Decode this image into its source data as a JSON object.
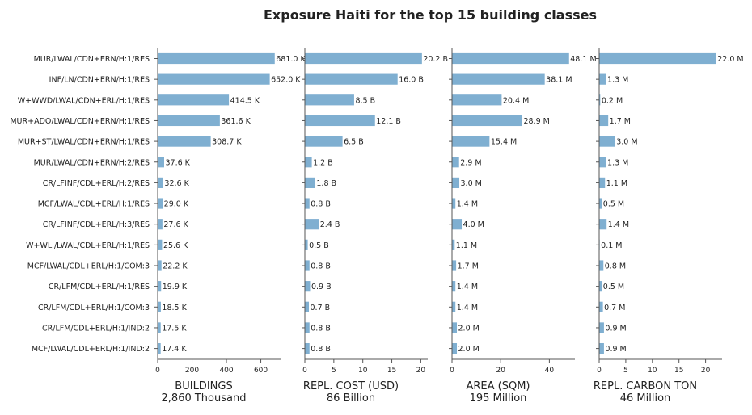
{
  "chart_data": {
    "type": "bar",
    "orientation": "horizontal",
    "title": "Exposure Haiti for the top 15 building classes",
    "categories": [
      "MUR/LWAL/CDN+ERN/H:1/RES",
      "INF/LN/CDN+ERN/H:1/RES",
      "W+WWD/LWAL/CDN+ERL/H:1/RES",
      "MUR+ADO/LWAL/CDN+ERN/H:1/RES",
      "MUR+ST/LWAL/CDN+ERN/H:1/RES",
      "MUR/LWAL/CDN+ERN/H:2/RES",
      "CR/LFINF/CDL+ERL/H:2/RES",
      "MCF/LWAL/CDL+ERL/H:1/RES",
      "CR/LFINF/CDL+ERL/H:3/RES",
      "W+WLI/LWAL/CDL+ERL/H:1/RES",
      "MCF/LWAL/CDL+ERL/H:1/COM:3",
      "CR/LFM/CDL+ERL/H:1/RES",
      "CR/LFM/CDL+ERL/H:1/COM:3",
      "CR/LFM/CDL+ERL/H:1/IND:2",
      "MCF/LWAL/CDL+ERL/H:1/IND:2"
    ],
    "bar_color": "#7fafd1",
    "panels": [
      {
        "xlabel": "BUILDINGS",
        "total": "2,860 Thousand",
        "values": [
          681.0,
          652.0,
          414.5,
          361.6,
          308.7,
          37.6,
          32.6,
          29.0,
          27.6,
          25.6,
          22.2,
          19.9,
          18.5,
          17.5,
          17.4
        ],
        "labels": [
          "681.0 K",
          "652.0 K",
          "414.5 K",
          "361.6 K",
          "308.7 K",
          "37.6 K",
          "32.6 K",
          "29.0 K",
          "27.6 K",
          "25.6 K",
          "22.2 K",
          "19.9 K",
          "18.5 K",
          "17.5 K",
          "17.4 K"
        ],
        "xlim": [
          0,
          715
        ],
        "ticks": [
          0,
          200,
          400,
          600
        ],
        "tick_labels": [
          "0",
          "200",
          "400",
          "600"
        ]
      },
      {
        "xlabel": "REPL. COST (USD)",
        "total": "86 Billion",
        "values": [
          20.2,
          16.0,
          8.5,
          12.1,
          6.5,
          1.2,
          1.8,
          0.8,
          2.4,
          0.5,
          0.8,
          0.9,
          0.7,
          0.8,
          0.8
        ],
        "labels": [
          "20.2 B",
          "16.0 B",
          "8.5 B",
          "12.1 B",
          "6.5 B",
          "1.2 B",
          "1.8 B",
          "0.8 B",
          "2.4 B",
          "0.5 B",
          "0.8 B",
          "0.9 B",
          "0.7 B",
          "0.8 B",
          "0.8 B"
        ],
        "xlim": [
          0,
          21.2
        ],
        "ticks": [
          0,
          5,
          10,
          15,
          20
        ],
        "tick_labels": [
          "0",
          "5",
          "10",
          "15",
          "20"
        ]
      },
      {
        "xlabel": "AREA (SQM)",
        "total": "195 Million",
        "values": [
          48.1,
          38.1,
          20.4,
          28.9,
          15.4,
          2.9,
          3.0,
          1.4,
          4.0,
          1.1,
          1.7,
          1.4,
          1.4,
          2.0,
          2.0
        ],
        "labels": [
          "48.1 M",
          "38.1 M",
          "20.4 M",
          "28.9 M",
          "15.4 M",
          "2.9 M",
          "3.0 M",
          "1.4 M",
          "4.0 M",
          "1.1 M",
          "1.7 M",
          "1.4 M",
          "1.4 M",
          "2.0 M",
          "2.0 M"
        ],
        "xlim": [
          0,
          50.5
        ],
        "ticks": [
          0,
          20,
          40
        ],
        "tick_labels": [
          "0",
          "20",
          "40"
        ]
      },
      {
        "xlabel": "REPL. CARBON TON",
        "total": "46 Million",
        "values": [
          22.0,
          1.3,
          0.2,
          1.7,
          3.0,
          1.3,
          1.1,
          0.5,
          1.4,
          0.1,
          0.8,
          0.5,
          0.7,
          0.9,
          0.9
        ],
        "labels": [
          "22.0 M",
          "1.3 M",
          "0.2 M",
          "1.7 M",
          "3.0 M",
          "1.3 M",
          "1.1 M",
          "0.5 M",
          "1.4 M",
          "0.1 M",
          "0.8 M",
          "0.5 M",
          "0.7 M",
          "0.9 M",
          "0.9 M"
        ],
        "xlim": [
          0,
          23.1
        ],
        "ticks": [
          0,
          5,
          10,
          15,
          20
        ],
        "tick_labels": [
          "0",
          "5",
          "10",
          "15",
          "20"
        ]
      }
    ]
  }
}
